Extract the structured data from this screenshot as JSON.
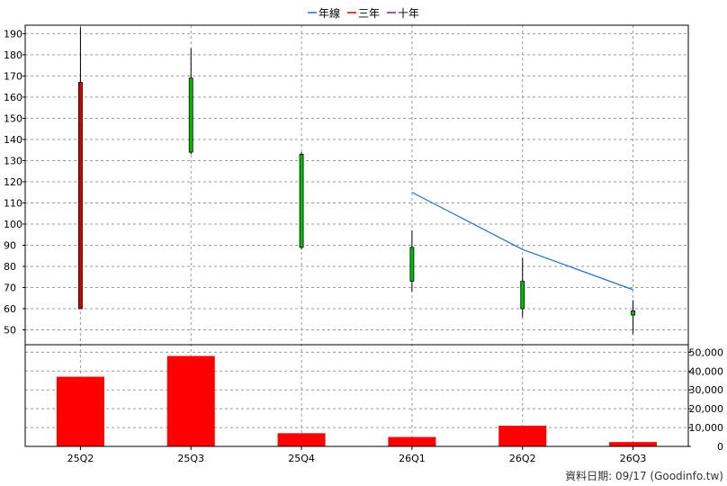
{
  "chart_data": {
    "type": "candlestick",
    "legend": [
      {
        "label": "年線",
        "color": "#1f6fd0"
      },
      {
        "label": "三年",
        "color": "#d40000"
      },
      {
        "label": "十年",
        "color": "#9b1c5a"
      }
    ],
    "legend_placement": "top-center",
    "categories": [
      "25Q2",
      "25Q3",
      "25Q4",
      "26Q1",
      "26Q2",
      "26Q3"
    ],
    "price_axis": {
      "ticks": [
        50,
        60,
        70,
        80,
        90,
        100,
        110,
        120,
        130,
        140,
        150,
        160,
        170,
        180,
        190
      ],
      "range": [
        43,
        194
      ]
    },
    "volume_axis": {
      "ticks": [
        0,
        10000,
        20000,
        30000,
        40000,
        50000
      ],
      "tick_labels": [
        "0",
        "10,000",
        "20,000",
        "30,000",
        "40,000",
        "50,000"
      ],
      "range": [
        0,
        54000
      ]
    },
    "candles": [
      {
        "period": "25Q2",
        "open": 60,
        "high": 193,
        "low": 60,
        "close": 167,
        "color": "#d40000"
      },
      {
        "period": "25Q3",
        "open": 169,
        "high": 183,
        "low": 133,
        "close": 134,
        "color": "#00c000"
      },
      {
        "period": "25Q4",
        "open": 133,
        "high": 134,
        "low": 88,
        "close": 89,
        "color": "#00c000"
      },
      {
        "period": "26Q1",
        "open": 89,
        "high": 97,
        "low": 68,
        "close": 73,
        "color": "#00c000"
      },
      {
        "period": "26Q2",
        "open": 73,
        "high": 84,
        "low": 56,
        "close": 60,
        "color": "#00c000"
      },
      {
        "period": "26Q3",
        "open": 59,
        "high": 64,
        "low": 48,
        "close": 57,
        "color": "#00c000"
      }
    ],
    "series": [
      {
        "name": "年線",
        "color": "#1f6fd0",
        "values": [
          null,
          null,
          null,
          115,
          88,
          69
        ]
      }
    ],
    "volume": [
      37000,
      48000,
      7000,
      5000,
      11000,
      2300
    ],
    "grid": true
  },
  "footer": {
    "text": "資料日期: 09/17  (Goodinfo.tw)"
  }
}
